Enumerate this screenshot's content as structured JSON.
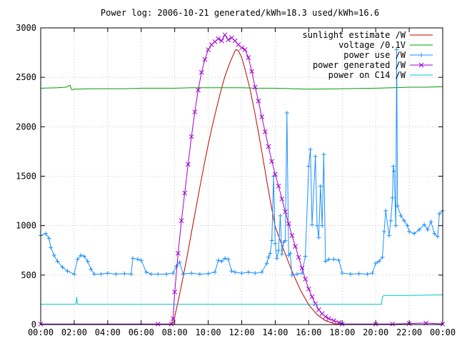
{
  "chart_data": {
    "type": "line",
    "title": "Power log: 2006-10-21 generated/kWh=18.3 used/kWh=16.6",
    "xlabel": "",
    "ylabel": "",
    "xlim": [
      0,
      24
    ],
    "ylim": [
      0,
      3000
    ],
    "grid": true,
    "legend_position": "top-right",
    "x_ticks": [
      "00:00",
      "02:00",
      "04:00",
      "06:00",
      "08:00",
      "10:00",
      "12:00",
      "14:00",
      "16:00",
      "18:00",
      "20:00",
      "22:00",
      "00:00"
    ],
    "y_ticks": [
      "0",
      "500",
      "1000",
      "1500",
      "2000",
      "2500",
      "3000"
    ],
    "series": [
      {
        "name": "sunlight estimate /W",
        "color": "#c00000",
        "marker": "none",
        "points": [
          [
            7.9,
            0
          ],
          [
            8.0,
            80
          ],
          [
            8.25,
            270
          ],
          [
            8.5,
            480
          ],
          [
            8.75,
            700
          ],
          [
            9.0,
            930
          ],
          [
            9.25,
            1160
          ],
          [
            9.5,
            1390
          ],
          [
            9.75,
            1610
          ],
          [
            10.0,
            1820
          ],
          [
            10.25,
            2010
          ],
          [
            10.5,
            2190
          ],
          [
            10.75,
            2360
          ],
          [
            11.0,
            2510
          ],
          [
            11.25,
            2630
          ],
          [
            11.5,
            2730
          ],
          [
            11.65,
            2780
          ],
          [
            11.8,
            2770
          ],
          [
            12.0,
            2700
          ],
          [
            12.2,
            2580
          ],
          [
            12.5,
            2380
          ],
          [
            12.75,
            2170
          ],
          [
            13.0,
            1940
          ],
          [
            13.25,
            1700
          ],
          [
            13.5,
            1450
          ],
          [
            13.75,
            1210
          ],
          [
            14.0,
            990
          ],
          [
            14.5,
            760
          ],
          [
            15.0,
            540
          ],
          [
            15.5,
            350
          ],
          [
            16.0,
            200
          ],
          [
            16.5,
            100
          ],
          [
            17.0,
            40
          ],
          [
            17.5,
            10
          ],
          [
            18.0,
            0
          ]
        ]
      },
      {
        "name": "voltage /0.1V",
        "color": "#00a000",
        "marker": "none",
        "points": [
          [
            0,
            2390
          ],
          [
            1.0,
            2395
          ],
          [
            1.5,
            2400
          ],
          [
            1.75,
            2420
          ],
          [
            1.85,
            2375
          ],
          [
            2.0,
            2380
          ],
          [
            3.0,
            2385
          ],
          [
            5.0,
            2385
          ],
          [
            6.0,
            2390
          ],
          [
            8.0,
            2390
          ],
          [
            9.0,
            2395
          ],
          [
            11.0,
            2395
          ],
          [
            12.0,
            2395
          ],
          [
            13.0,
            2390
          ],
          [
            14.0,
            2390
          ],
          [
            16.0,
            2380
          ],
          [
            18.0,
            2385
          ],
          [
            20.0,
            2390
          ],
          [
            21.0,
            2395
          ],
          [
            22.0,
            2400
          ],
          [
            23.0,
            2400
          ],
          [
            24.0,
            2405
          ]
        ]
      },
      {
        "name": "power use /W",
        "color": "#1e90ff",
        "marker": "plus",
        "points": [
          [
            0.0,
            900
          ],
          [
            0.3,
            920
          ],
          [
            0.5,
            870
          ],
          [
            0.6,
            780
          ],
          [
            0.8,
            700
          ],
          [
            1.0,
            640
          ],
          [
            1.3,
            580
          ],
          [
            1.6,
            540
          ],
          [
            2.0,
            510
          ],
          [
            2.2,
            660
          ],
          [
            2.4,
            700
          ],
          [
            2.6,
            690
          ],
          [
            2.8,
            640
          ],
          [
            3.0,
            560
          ],
          [
            3.2,
            510
          ],
          [
            3.6,
            510
          ],
          [
            4.0,
            520
          ],
          [
            4.5,
            510
          ],
          [
            5.0,
            515
          ],
          [
            5.4,
            510
          ],
          [
            5.5,
            670
          ],
          [
            5.8,
            660
          ],
          [
            6.0,
            650
          ],
          [
            6.3,
            530
          ],
          [
            6.6,
            510
          ],
          [
            7.0,
            510
          ],
          [
            7.5,
            510
          ],
          [
            7.9,
            520
          ],
          [
            8.1,
            590
          ],
          [
            8.3,
            630
          ],
          [
            8.5,
            510
          ],
          [
            9.0,
            520
          ],
          [
            9.5,
            510
          ],
          [
            10.0,
            515
          ],
          [
            10.4,
            530
          ],
          [
            10.6,
            650
          ],
          [
            10.8,
            640
          ],
          [
            11.0,
            670
          ],
          [
            11.2,
            660
          ],
          [
            11.4,
            540
          ],
          [
            11.6,
            530
          ],
          [
            12.0,
            520
          ],
          [
            12.4,
            530
          ],
          [
            12.8,
            520
          ],
          [
            13.2,
            530
          ],
          [
            13.5,
            620
          ],
          [
            13.6,
            680
          ],
          [
            13.7,
            720
          ],
          [
            13.8,
            850
          ],
          [
            13.9,
            1500
          ],
          [
            14.0,
            820
          ],
          [
            14.1,
            670
          ],
          [
            14.2,
            750
          ],
          [
            14.3,
            1100
          ],
          [
            14.4,
            710
          ],
          [
            14.5,
            830
          ],
          [
            14.6,
            850
          ],
          [
            14.7,
            2140
          ],
          [
            14.8,
            700
          ],
          [
            14.9,
            720
          ],
          [
            15.0,
            500
          ],
          [
            15.3,
            510
          ],
          [
            15.6,
            520
          ],
          [
            15.8,
            690
          ],
          [
            16.0,
            1600
          ],
          [
            16.1,
            1770
          ],
          [
            16.2,
            1010
          ],
          [
            16.4,
            1700
          ],
          [
            16.5,
            1000
          ],
          [
            16.6,
            880
          ],
          [
            16.7,
            1400
          ],
          [
            16.8,
            1000
          ],
          [
            16.9,
            1720
          ],
          [
            17.0,
            640
          ],
          [
            17.2,
            660
          ],
          [
            17.5,
            660
          ],
          [
            17.8,
            650
          ],
          [
            18.0,
            520
          ],
          [
            18.5,
            510
          ],
          [
            19.0,
            515
          ],
          [
            19.5,
            510
          ],
          [
            19.8,
            520
          ],
          [
            20.0,
            620
          ],
          [
            20.2,
            640
          ],
          [
            20.4,
            680
          ],
          [
            20.5,
            940
          ],
          [
            20.6,
            1150
          ],
          [
            20.8,
            900
          ],
          [
            20.9,
            1050
          ],
          [
            21.0,
            1280
          ],
          [
            21.05,
            1600
          ],
          [
            21.1,
            1550
          ],
          [
            21.2,
            1000
          ],
          [
            21.25,
            2780
          ],
          [
            21.3,
            1200
          ],
          [
            21.5,
            1100
          ],
          [
            21.7,
            1050
          ],
          [
            21.9,
            1000
          ],
          [
            22.0,
            940
          ],
          [
            22.3,
            920
          ],
          [
            22.6,
            960
          ],
          [
            22.9,
            1010
          ],
          [
            23.1,
            960
          ],
          [
            23.3,
            1040
          ],
          [
            23.5,
            920
          ],
          [
            23.7,
            890
          ],
          [
            23.8,
            1120
          ],
          [
            24.0,
            1150
          ]
        ]
      },
      {
        "name": "power generated /W",
        "color": "#a000d0",
        "marker": "cross",
        "points": [
          [
            0,
            5
          ],
          [
            7.0,
            5
          ],
          [
            7.8,
            5
          ],
          [
            7.9,
            60
          ],
          [
            8.0,
            330
          ],
          [
            8.2,
            720
          ],
          [
            8.4,
            1050
          ],
          [
            8.6,
            1330
          ],
          [
            8.8,
            1620
          ],
          [
            9.0,
            1900
          ],
          [
            9.2,
            2150
          ],
          [
            9.4,
            2370
          ],
          [
            9.6,
            2550
          ],
          [
            9.8,
            2680
          ],
          [
            10.0,
            2780
          ],
          [
            10.2,
            2830
          ],
          [
            10.4,
            2860
          ],
          [
            10.6,
            2890
          ],
          [
            10.8,
            2870
          ],
          [
            11.0,
            2930
          ],
          [
            11.2,
            2880
          ],
          [
            11.4,
            2900
          ],
          [
            11.6,
            2870
          ],
          [
            11.8,
            2830
          ],
          [
            12.0,
            2800
          ],
          [
            12.2,
            2780
          ],
          [
            12.4,
            2700
          ],
          [
            12.6,
            2560
          ],
          [
            12.8,
            2400
          ],
          [
            13.0,
            2260
          ],
          [
            13.2,
            2100
          ],
          [
            13.4,
            1950
          ],
          [
            13.6,
            1800
          ],
          [
            13.8,
            1650
          ],
          [
            14.0,
            1520
          ],
          [
            14.2,
            1400
          ],
          [
            14.4,
            1270
          ],
          [
            14.6,
            1140
          ],
          [
            14.8,
            1020
          ],
          [
            15.0,
            900
          ],
          [
            15.2,
            790
          ],
          [
            15.4,
            680
          ],
          [
            15.6,
            570
          ],
          [
            15.8,
            460
          ],
          [
            16.0,
            360
          ],
          [
            16.2,
            280
          ],
          [
            16.4,
            210
          ],
          [
            16.6,
            150
          ],
          [
            16.8,
            110
          ],
          [
            17.0,
            80
          ],
          [
            17.2,
            60
          ],
          [
            17.5,
            40
          ],
          [
            17.8,
            20
          ],
          [
            18.0,
            5
          ],
          [
            20.0,
            5
          ],
          [
            21.0,
            5
          ],
          [
            22.0,
            10
          ],
          [
            23.0,
            15
          ],
          [
            24.0,
            5
          ]
        ]
      },
      {
        "name": "power on C14 /W",
        "color": "#00c8c8",
        "marker": "none",
        "points": [
          [
            0,
            205
          ],
          [
            2.1,
            205
          ],
          [
            2.15,
            280
          ],
          [
            2.2,
            205
          ],
          [
            8.0,
            205
          ],
          [
            12.0,
            205
          ],
          [
            16.0,
            205
          ],
          [
            20.0,
            205
          ],
          [
            20.35,
            205
          ],
          [
            20.4,
            280
          ],
          [
            20.5,
            295
          ],
          [
            22.0,
            295
          ],
          [
            24.0,
            300
          ]
        ]
      }
    ]
  }
}
